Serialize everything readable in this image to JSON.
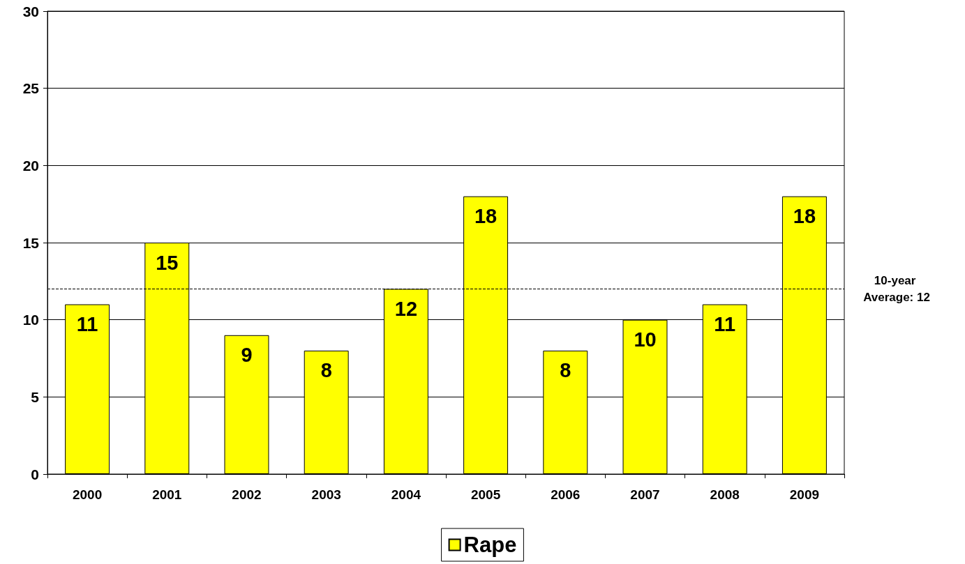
{
  "chart_data": {
    "type": "bar",
    "categories": [
      "2000",
      "2001",
      "2002",
      "2003",
      "2004",
      "2005",
      "2006",
      "2007",
      "2008",
      "2009"
    ],
    "series": [
      {
        "name": "Rape",
        "color": "#ffff00",
        "values": [
          11,
          15,
          9,
          8,
          12,
          18,
          8,
          10,
          11,
          18
        ]
      }
    ],
    "ylim": [
      0,
      30
    ],
    "yticks": [
      0,
      5,
      10,
      15,
      20,
      25,
      30
    ],
    "grid": "y",
    "data_labels": true,
    "legend": "bottom",
    "ref_lines": [
      {
        "axis": "y",
        "value": 12,
        "label": "10-year Average: 12",
        "color": "#000000",
        "line_style": "dashed"
      }
    ]
  }
}
